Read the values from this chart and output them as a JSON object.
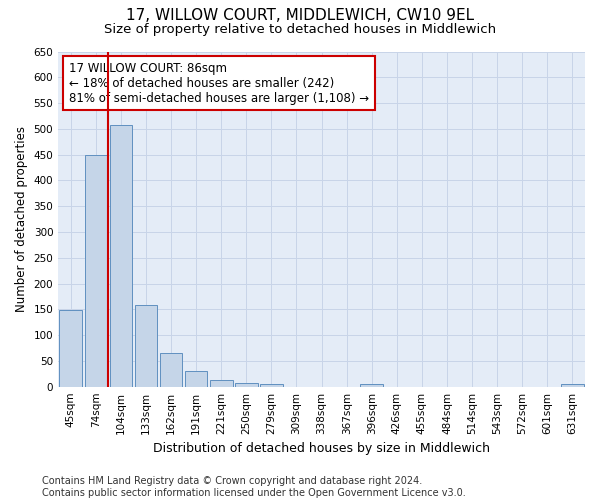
{
  "title": "17, WILLOW COURT, MIDDLEWICH, CW10 9EL",
  "subtitle": "Size of property relative to detached houses in Middlewich",
  "xlabel": "Distribution of detached houses by size in Middlewich",
  "ylabel": "Number of detached properties",
  "categories": [
    "45sqm",
    "74sqm",
    "104sqm",
    "133sqm",
    "162sqm",
    "191sqm",
    "221sqm",
    "250sqm",
    "279sqm",
    "309sqm",
    "338sqm",
    "367sqm",
    "396sqm",
    "426sqm",
    "455sqm",
    "484sqm",
    "514sqm",
    "543sqm",
    "572sqm",
    "601sqm",
    "631sqm"
  ],
  "values": [
    148,
    450,
    507,
    159,
    65,
    30,
    12,
    7,
    5,
    0,
    0,
    0,
    5,
    0,
    0,
    0,
    0,
    0,
    0,
    0,
    5
  ],
  "bar_color": "#c5d5e8",
  "bar_edge_color": "#6090c0",
  "vline_x": 1.5,
  "vline_color": "#cc0000",
  "annotation_text": "17 WILLOW COURT: 86sqm\n← 18% of detached houses are smaller (242)\n81% of semi-detached houses are larger (1,108) →",
  "annotation_box_color": "#ffffff",
  "annotation_box_edge": "#cc0000",
  "ylim": [
    0,
    650
  ],
  "yticks": [
    0,
    50,
    100,
    150,
    200,
    250,
    300,
    350,
    400,
    450,
    500,
    550,
    600,
    650
  ],
  "grid_color": "#c8d4e8",
  "background_color": "#e4ecf7",
  "footer": "Contains HM Land Registry data © Crown copyright and database right 2024.\nContains public sector information licensed under the Open Government Licence v3.0.",
  "title_fontsize": 11,
  "subtitle_fontsize": 9.5,
  "xlabel_fontsize": 9,
  "ylabel_fontsize": 8.5,
  "tick_fontsize": 7.5,
  "annotation_fontsize": 8.5,
  "footer_fontsize": 7
}
